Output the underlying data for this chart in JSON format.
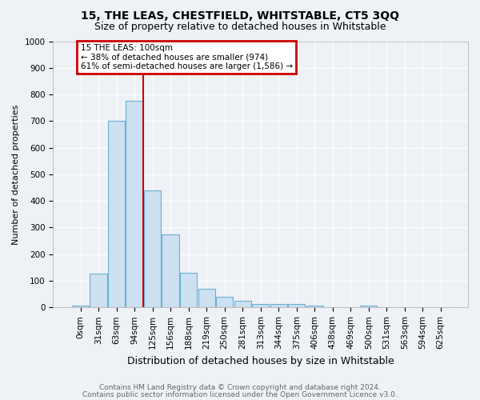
{
  "title": "15, THE LEAS, CHESTFIELD, WHITSTABLE, CT5 3QQ",
  "subtitle": "Size of property relative to detached houses in Whitstable",
  "xlabel": "Distribution of detached houses by size in Whitstable",
  "ylabel": "Number of detached properties",
  "footnote1": "Contains HM Land Registry data © Crown copyright and database right 2024.",
  "footnote2": "Contains public sector information licensed under the Open Government Licence v3.0.",
  "annotation_line1": "15 THE LEAS: 100sqm",
  "annotation_line2": "← 38% of detached houses are smaller (974)",
  "annotation_line3": "61% of semi-detached houses are larger (1,586) →",
  "bar_categories": [
    "0sqm",
    "31sqm",
    "63sqm",
    "94sqm",
    "125sqm",
    "156sqm",
    "188sqm",
    "219sqm",
    "250sqm",
    "281sqm",
    "313sqm",
    "344sqm",
    "375sqm",
    "406sqm",
    "438sqm",
    "469sqm",
    "500sqm",
    "531sqm",
    "563sqm",
    "594sqm",
    "625sqm"
  ],
  "bar_values": [
    8,
    128,
    700,
    775,
    440,
    275,
    130,
    70,
    40,
    25,
    12,
    12,
    12,
    7,
    0,
    0,
    8,
    0,
    0,
    0,
    0
  ],
  "bar_color": "#cce0f0",
  "bar_edge_color": "#6aafd6",
  "vline_color": "#cc0000",
  "vline_x_index": 3.5,
  "background_color": "#eef2f7",
  "grid_color": "#ffffff",
  "ylim": [
    0,
    1000
  ],
  "yticks": [
    0,
    100,
    200,
    300,
    400,
    500,
    600,
    700,
    800,
    900,
    1000
  ],
  "annotation_box_color": "#cc0000",
  "title_fontsize": 10,
  "subtitle_fontsize": 9,
  "ylabel_fontsize": 8,
  "xlabel_fontsize": 9,
  "tick_fontsize": 7.5,
  "footnote_fontsize": 6.5,
  "footnote_color": "#666666"
}
